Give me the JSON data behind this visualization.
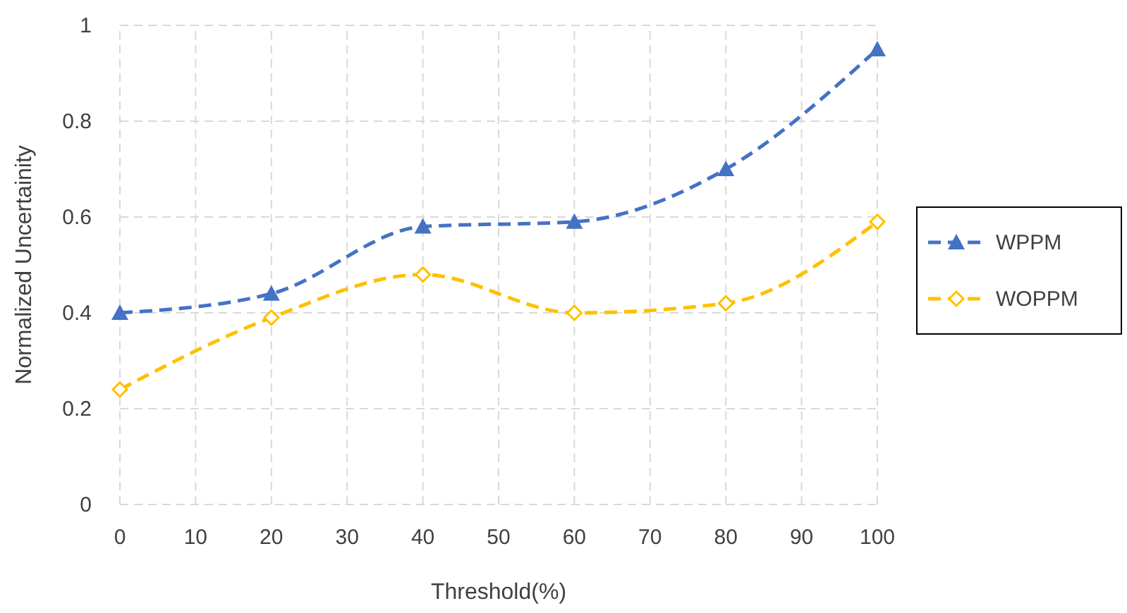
{
  "chart_data": {
    "type": "line",
    "xlabel": "Threshold(%)",
    "ylabel": "Normalized Uncertainity",
    "x": [
      0,
      20,
      40,
      60,
      80,
      100
    ],
    "series": [
      {
        "name": "WPPM",
        "color": "#4472c4",
        "values": [
          0.4,
          0.44,
          0.58,
          0.59,
          0.7,
          0.95
        ],
        "marker": "triangle",
        "line_style": "dashed"
      },
      {
        "name": "WOPPM",
        "color": "#ffc000",
        "values": [
          0.24,
          0.39,
          0.48,
          0.4,
          0.42,
          0.59
        ],
        "marker": "diamond",
        "line_style": "dashed"
      }
    ],
    "xlim": [
      0,
      100
    ],
    "xticks": [
      0,
      10,
      20,
      30,
      40,
      50,
      60,
      70,
      80,
      90,
      100
    ],
    "ylim": [
      0,
      1
    ],
    "yticks": [
      0,
      0.2,
      0.4,
      0.6,
      0.8,
      1
    ],
    "grid": true,
    "legend": "right"
  }
}
